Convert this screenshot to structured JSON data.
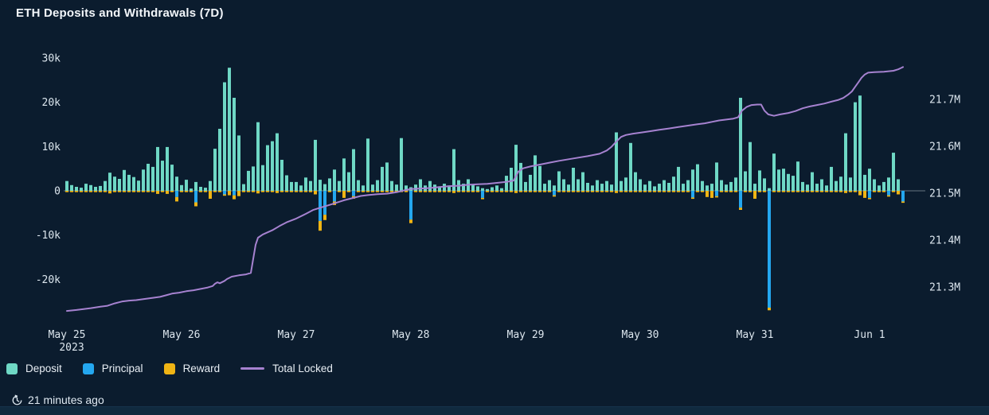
{
  "chart_data": {
    "type": "bar",
    "title": "ETH Deposits and Withdrawals (7D)",
    "value_unit": "thousand ETH (left axis), million ETH (right axis)",
    "x_unit": "hour index from May 25 2023 00:00",
    "legend_position": "bottom-left",
    "grid": "zero-line only",
    "y_left": {
      "range_k": [
        -27,
        30
      ],
      "ticks": [
        {
          "label": "30k",
          "value": 30
        },
        {
          "label": "20k",
          "value": 20
        },
        {
          "label": "10k",
          "value": 10
        },
        {
          "label": "0",
          "value": 0
        },
        {
          "label": "-10k",
          "value": -10
        },
        {
          "label": "-20k",
          "value": -20
        }
      ]
    },
    "y_right": {
      "range_m": [
        21.24,
        21.78
      ],
      "ticks": [
        {
          "label": "21.7M",
          "value": 21.7
        },
        {
          "label": "21.6M",
          "value": 21.6
        },
        {
          "label": "21.5M",
          "value": 21.5
        },
        {
          "label": "21.4M",
          "value": 21.4
        },
        {
          "label": "21.3M",
          "value": 21.3
        }
      ]
    },
    "x_axis": {
      "ticks": [
        {
          "label": "May 25",
          "sublabel": "2023",
          "hour": 0
        },
        {
          "label": "May 26",
          "hour": 24
        },
        {
          "label": "May 27",
          "hour": 48
        },
        {
          "label": "May 28",
          "hour": 72
        },
        {
          "label": "May 29",
          "hour": 96
        },
        {
          "label": "May 30",
          "hour": 120
        },
        {
          "label": "May 31",
          "hour": 144
        },
        {
          "label": "Jun 1",
          "hour": 168
        }
      ]
    },
    "series": [
      {
        "name": "Deposit",
        "color_key": "deposit",
        "sign": "positive",
        "values_k": [
          2.2,
          1.3,
          0.9,
          0.7,
          1.6,
          1.3,
          0.9,
          1.1,
          2.2,
          4.1,
          3.2,
          2.7,
          4.7,
          3.6,
          3.1,
          2.3,
          4.8,
          6.1,
          5.4,
          9.9,
          6.8,
          9.9,
          5.9,
          3.2,
          1.3,
          2.5,
          0.5,
          2.0,
          0.9,
          0.7,
          2.2,
          9.5,
          14.0,
          24.5,
          27.8,
          21.0,
          12.5,
          1.5,
          4.5,
          5.5,
          15.5,
          5.8,
          10.3,
          11.2,
          13.0,
          7.0,
          3.5,
          2.0,
          2.0,
          1.2,
          3.0,
          2.2,
          11.5,
          2.5,
          1.5,
          2.8,
          4.8,
          2.2,
          7.3,
          4.2,
          9.4,
          2.4,
          1.2,
          11.8,
          1.4,
          2.4,
          5.4,
          6.4,
          2.2,
          1.4,
          11.9,
          1.2,
          0.8,
          1.4,
          2.6,
          1.2,
          2.2,
          1.4,
          1.0,
          1.6,
          1.2,
          9.4,
          2.4,
          1.6,
          2.6,
          1.4,
          1.0,
          0.6,
          0.4,
          0.8,
          1.2,
          0.6,
          3.4,
          5.2,
          10.4,
          6.3,
          2.0,
          3.6,
          8.0,
          5.6,
          1.6,
          2.4,
          1.2,
          4.4,
          2.6,
          1.4,
          5.2,
          2.6,
          4.2,
          1.8,
          1.2,
          2.4,
          1.6,
          2.2,
          1.4,
          13.2,
          2.2,
          3.0,
          10.8,
          4.2,
          2.6,
          1.4,
          2.2,
          1.0,
          1.6,
          2.4,
          1.8,
          3.2,
          5.4,
          1.6,
          2.4,
          4.8,
          6.0,
          2.2,
          1.2,
          1.6,
          6.4,
          2.4,
          1.4,
          2.0,
          3.0,
          21.0,
          4.4,
          11.0,
          1.6,
          4.6,
          2.8,
          0.6,
          8.4,
          4.8,
          5.0,
          3.8,
          3.4,
          6.6,
          2.0,
          1.4,
          4.2,
          1.6,
          2.6,
          1.2,
          5.4,
          2.2,
          3.2,
          13.0,
          3.0,
          20.0,
          21.5,
          3.6,
          5.0,
          2.6,
          1.2,
          2.0,
          3.0,
          8.6,
          2.6,
          0
        ]
      },
      {
        "name": "Principal",
        "color_key": "principal",
        "sign": "negative",
        "values_k": [
          0,
          0,
          0,
          0,
          0,
          0,
          0,
          0,
          0,
          0,
          0,
          0,
          0,
          0,
          0,
          0,
          0,
          0,
          0,
          0,
          0,
          0,
          0,
          -1.4,
          0,
          0,
          0,
          -2.6,
          0,
          0,
          0,
          0,
          0,
          -0.8,
          0,
          -1.0,
          0,
          0,
          0,
          0,
          0,
          0,
          0,
          0,
          0,
          0,
          0,
          0,
          0,
          0,
          0,
          0,
          0,
          -6.8,
          -5.4,
          0,
          -2.4,
          0,
          0,
          0,
          -1.2,
          0,
          0,
          0,
          0,
          0,
          0,
          0,
          0,
          0,
          0,
          0,
          -6.5,
          0,
          0,
          0,
          0,
          0,
          0,
          0,
          0,
          0,
          0,
          0,
          0,
          0,
          0,
          -1.6,
          0,
          0,
          0,
          0,
          0,
          0,
          0,
          0,
          0,
          0,
          0,
          0,
          0,
          0,
          -1.0,
          0,
          0,
          0,
          0,
          0,
          0,
          0,
          0,
          0,
          0,
          0,
          0,
          0,
          0,
          0,
          0,
          0,
          0,
          0,
          0,
          0,
          0,
          0,
          0,
          0,
          0,
          0,
          0,
          -1.5,
          0,
          0,
          0,
          0,
          -1.2,
          0,
          0,
          0,
          0,
          -3.8,
          0,
          0,
          0,
          0,
          0,
          -26.4,
          0,
          0,
          0,
          0,
          0,
          0,
          0,
          0,
          0,
          0,
          0,
          0,
          0,
          0,
          0,
          0,
          0,
          0,
          0,
          0,
          -1.6,
          0,
          0,
          0,
          -1.0,
          0,
          0,
          -2.4
        ]
      },
      {
        "name": "Reward",
        "color_key": "reward",
        "sign": "negative",
        "values_k": [
          -0.3,
          -0.3,
          -0.3,
          -0.3,
          -0.3,
          -0.3,
          -0.3,
          -0.3,
          -0.3,
          -0.6,
          -0.3,
          -0.3,
          -0.3,
          -0.3,
          -0.3,
          -0.3,
          -0.3,
          -0.3,
          -0.3,
          -0.7,
          -0.3,
          -0.7,
          -0.3,
          -1.0,
          -0.3,
          -0.3,
          -0.3,
          -0.9,
          -0.3,
          -0.3,
          -1.8,
          -0.3,
          -0.3,
          -0.3,
          -1.0,
          -0.9,
          -1.2,
          -0.3,
          -0.3,
          -0.3,
          -0.6,
          -0.3,
          -0.3,
          -0.3,
          -0.5,
          -0.3,
          -0.3,
          -0.3,
          -0.3,
          -0.3,
          -0.3,
          -0.3,
          -0.8,
          -2.2,
          -1.2,
          -0.3,
          -0.8,
          -0.3,
          -1.6,
          -0.3,
          -0.6,
          -0.3,
          -0.3,
          -0.3,
          -0.3,
          -0.3,
          -0.3,
          -0.3,
          -0.3,
          -0.3,
          -0.3,
          -0.3,
          -0.8,
          -0.3,
          -0.3,
          -0.3,
          -0.3,
          -0.3,
          -0.3,
          -0.3,
          -0.3,
          -0.5,
          -0.3,
          -0.3,
          -0.3,
          -0.3,
          -0.3,
          -0.3,
          -0.3,
          -0.3,
          -0.3,
          -0.3,
          -0.3,
          -0.3,
          -0.5,
          -0.3,
          -0.3,
          -0.3,
          -0.3,
          -0.3,
          -0.3,
          -0.3,
          -0.3,
          -0.3,
          -0.3,
          -0.3,
          -0.3,
          -0.3,
          -0.3,
          -0.3,
          -0.3,
          -0.3,
          -0.3,
          -0.3,
          -0.3,
          -0.5,
          -0.3,
          -0.3,
          -0.3,
          -0.3,
          -0.3,
          -0.3,
          -0.3,
          -0.3,
          -0.3,
          -0.3,
          -0.3,
          -0.3,
          -0.3,
          -0.3,
          -0.3,
          -0.3,
          -0.3,
          -0.3,
          -1.4,
          -1.6,
          -0.3,
          -0.3,
          -0.3,
          -0.3,
          -0.3,
          -0.5,
          -0.3,
          -0.3,
          -1.8,
          -0.3,
          -0.3,
          -0.6,
          -0.3,
          -0.3,
          -0.3,
          -0.3,
          -0.3,
          -0.3,
          -0.3,
          -0.3,
          -0.3,
          -0.3,
          -0.3,
          -0.3,
          -0.3,
          -0.3,
          -0.3,
          -0.5,
          -0.3,
          -0.3,
          -1.0,
          -1.6,
          -0.3,
          -0.3,
          -0.3,
          -0.3,
          -0.3,
          -0.3,
          -0.8,
          -0.3
        ]
      }
    ],
    "line_series": {
      "name": "Total Locked",
      "color_key": "total_locked",
      "axis": "right",
      "unit": "M",
      "points": [
        [
          0,
          21.249
        ],
        [
          2,
          21.251
        ],
        [
          3.5,
          21.253
        ],
        [
          5,
          21.255
        ],
        [
          7,
          21.258
        ],
        [
          8.5,
          21.26
        ],
        [
          10,
          21.265
        ],
        [
          11.5,
          21.269
        ],
        [
          13,
          21.271
        ],
        [
          14.5,
          21.272
        ],
        [
          16,
          21.274
        ],
        [
          18,
          21.277
        ],
        [
          19.5,
          21.279
        ],
        [
          21,
          21.283
        ],
        [
          22,
          21.286
        ],
        [
          23.5,
          21.288
        ],
        [
          25,
          21.291
        ],
        [
          26.5,
          21.293
        ],
        [
          28,
          21.296
        ],
        [
          29.5,
          21.299
        ],
        [
          30.5,
          21.302
        ],
        [
          31,
          21.307
        ],
        [
          31.5,
          21.31
        ],
        [
          32,
          21.308
        ],
        [
          33,
          21.313
        ],
        [
          33.5,
          21.317
        ],
        [
          34.5,
          21.322
        ],
        [
          36,
          21.325
        ],
        [
          37.5,
          21.327
        ],
        [
          38.5,
          21.33
        ],
        [
          39,
          21.36
        ],
        [
          39.5,
          21.39
        ],
        [
          40,
          21.405
        ],
        [
          41,
          21.412
        ],
        [
          43,
          21.421
        ],
        [
          44.5,
          21.43
        ],
        [
          46,
          21.438
        ],
        [
          48,
          21.446
        ],
        [
          50,
          21.456
        ],
        [
          51.5,
          21.464
        ],
        [
          53,
          21.469
        ],
        [
          55,
          21.475
        ],
        [
          56.5,
          21.48
        ],
        [
          58,
          21.485
        ],
        [
          60,
          21.49
        ],
        [
          61.5,
          21.494
        ],
        [
          63,
          21.496
        ],
        [
          65,
          21.498
        ],
        [
          67,
          21.499
        ],
        [
          69,
          21.502
        ],
        [
          71,
          21.507
        ],
        [
          72,
          21.509
        ],
        [
          74,
          21.51
        ],
        [
          76,
          21.511
        ],
        [
          78,
          21.513
        ],
        [
          80,
          21.515
        ],
        [
          82,
          21.516
        ],
        [
          84,
          21.518
        ],
        [
          86,
          21.519
        ],
        [
          88,
          21.52
        ],
        [
          90,
          21.522
        ],
        [
          92,
          21.524
        ],
        [
          93.5,
          21.527
        ],
        [
          94.5,
          21.546
        ],
        [
          95.5,
          21.553
        ],
        [
          97,
          21.557
        ],
        [
          99,
          21.561
        ],
        [
          101,
          21.565
        ],
        [
          103,
          21.569
        ],
        [
          106,
          21.574
        ],
        [
          109,
          21.579
        ],
        [
          111.5,
          21.584
        ],
        [
          113,
          21.591
        ],
        [
          114,
          21.599
        ],
        [
          115,
          21.61
        ],
        [
          116,
          21.62
        ],
        [
          117,
          21.624
        ],
        [
          118.5,
          21.627
        ],
        [
          120,
          21.629
        ],
        [
          122,
          21.632
        ],
        [
          124,
          21.635
        ],
        [
          126,
          21.638
        ],
        [
          128,
          21.641
        ],
        [
          130,
          21.644
        ],
        [
          132,
          21.647
        ],
        [
          133.5,
          21.649
        ],
        [
          135,
          21.652
        ],
        [
          136.5,
          21.655
        ],
        [
          138,
          21.657
        ],
        [
          139.5,
          21.659
        ],
        [
          140.5,
          21.662
        ],
        [
          141.3,
          21.676
        ],
        [
          142.3,
          21.684
        ],
        [
          143.3,
          21.688
        ],
        [
          144.5,
          21.689
        ],
        [
          145.3,
          21.689
        ],
        [
          146,
          21.676
        ],
        [
          146.8,
          21.668
        ],
        [
          148,
          21.665
        ],
        [
          149.3,
          21.668
        ],
        [
          151,
          21.671
        ],
        [
          152.5,
          21.675
        ],
        [
          154,
          21.681
        ],
        [
          155.5,
          21.685
        ],
        [
          157,
          21.688
        ],
        [
          158.5,
          21.691
        ],
        [
          160,
          21.695
        ],
        [
          161.5,
          21.699
        ],
        [
          162.5,
          21.703
        ],
        [
          163.5,
          21.71
        ],
        [
          164.3,
          21.717
        ],
        [
          165,
          21.727
        ],
        [
          165.7,
          21.737
        ],
        [
          166.3,
          21.746
        ],
        [
          167,
          21.753
        ],
        [
          167.7,
          21.757
        ],
        [
          169,
          21.758
        ],
        [
          171,
          21.759
        ],
        [
          173,
          21.761
        ],
        [
          174,
          21.764
        ],
        [
          174.6,
          21.767
        ],
        [
          175,
          21.769
        ]
      ]
    }
  },
  "colors": {
    "deposit": "#6fd8c5",
    "principal": "#24a7ef",
    "reward": "#f0b414",
    "total_locked": "#a682d0",
    "background": "#0b1c2e",
    "axis_text": "#dce6ee",
    "zero_line": "#aebac4"
  },
  "legend": {
    "items": [
      {
        "label": "Deposit",
        "key": "deposit",
        "swatch": "square"
      },
      {
        "label": "Principal",
        "key": "principal",
        "swatch": "square"
      },
      {
        "label": "Reward",
        "key": "reward",
        "swatch": "square"
      },
      {
        "label": "Total Locked",
        "key": "total_locked",
        "swatch": "line"
      }
    ]
  },
  "footer": {
    "updated_text": "21 minutes ago",
    "icon": "clock-history"
  }
}
